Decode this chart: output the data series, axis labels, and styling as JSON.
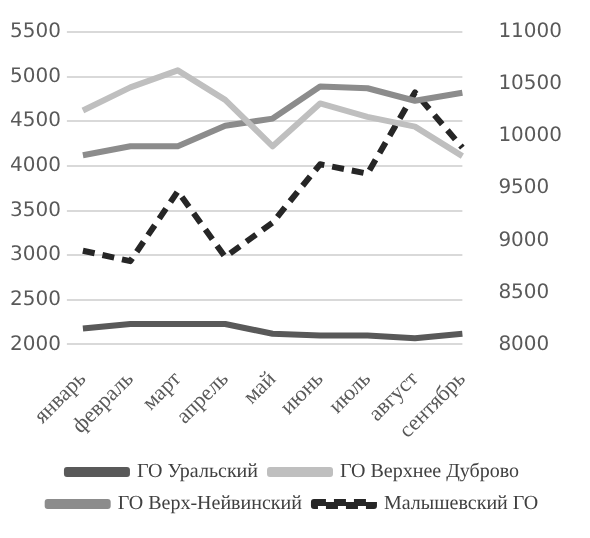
{
  "chart_data": {
    "type": "line",
    "categories": [
      "январь",
      "февраль",
      "март",
      "апрель",
      "май",
      "июнь",
      "июль",
      "август",
      "сентябрь"
    ],
    "series": [
      {
        "name": "ГО Уральский",
        "color": "#595959",
        "values": [
          2180,
          2230,
          2230,
          2230,
          2120,
          2100,
          2100,
          2070,
          2120
        ]
      },
      {
        "name": "ГО Верхнее Дуброво",
        "color": "#bfbfbf",
        "values": [
          4620,
          4880,
          5070,
          4740,
          4220,
          4700,
          4550,
          4440,
          4110
        ]
      },
      {
        "name": "ГО Верх-Нейвинский",
        "color": "#8c8c8c",
        "values": [
          4120,
          4220,
          4220,
          4450,
          4530,
          4890,
          4870,
          4730,
          4820
        ]
      },
      {
        "name": "Малышевский ГО",
        "color": "#262626",
        "axis": "y2",
        "line_style": "dashed",
        "values": [
          8900,
          8800,
          9470,
          8840,
          9170,
          9730,
          9640,
          10420,
          9890
        ]
      }
    ],
    "ylim": [
      2000,
      5500
    ],
    "yticks": [
      2000,
      2500,
      3000,
      3500,
      4000,
      4500,
      5000,
      5500
    ],
    "y2lim": [
      8000,
      11000
    ],
    "y2ticks": [
      8000,
      8500,
      9000,
      9500,
      10000,
      10500,
      11000
    ],
    "grid": "y",
    "legend": "bottom",
    "marker": "none",
    "line_style": "solid"
  }
}
